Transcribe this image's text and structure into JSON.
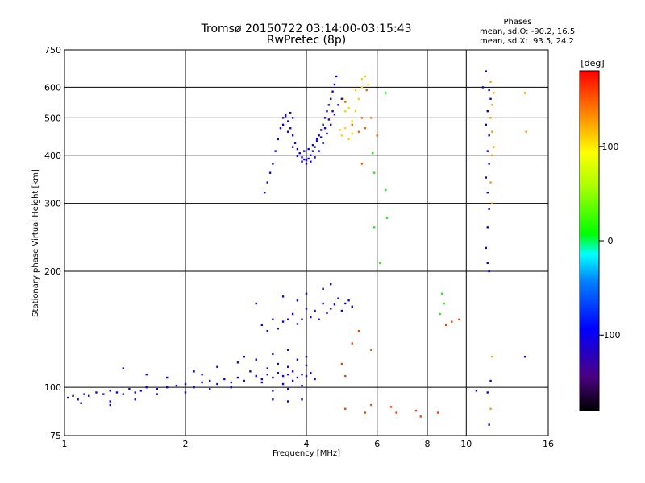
{
  "chart_data": {
    "type": "scatter",
    "title": "Tromsø 20150722 03:14:00-03:15:43",
    "subtitle": "RwPretec (8p)",
    "xlabel": "Frequency [MHz]",
    "ylabel": "Stationary phase Virtual Height [km]",
    "x_scale": "log",
    "y_scale": "log",
    "xlim": [
      1,
      16
    ],
    "ylim": [
      75,
      750
    ],
    "x_ticks": [
      1,
      2,
      4,
      6,
      8,
      10,
      16
    ],
    "y_ticks": [
      75,
      100,
      200,
      300,
      400,
      500,
      600,
      750
    ],
    "grid": true,
    "stats": {
      "header": "Phases",
      "line_o": "mean, sd,O: -90.2, 16.5",
      "line_x": "mean, sd,X:  93.5, 24.2"
    },
    "colorbar": {
      "label": "[deg]",
      "range": [
        -180,
        180
      ],
      "ticks": [
        100,
        0,
        -100
      ],
      "colors": [
        "#000000",
        "#5000a0",
        "#0000ff",
        "#0080ff",
        "#00ffff",
        "#00ff00",
        "#ffff00",
        "#ff8000",
        "#ff0000"
      ]
    },
    "series": [
      {
        "values": [
          [
            1.02,
            94
          ],
          [
            1.05,
            95
          ],
          [
            1.08,
            93
          ],
          [
            1.12,
            96
          ],
          [
            1.15,
            95
          ],
          [
            1.2,
            97
          ],
          [
            1.25,
            96
          ],
          [
            1.3,
            98
          ],
          [
            1.35,
            97
          ],
          [
            1.4,
            96
          ],
          [
            1.45,
            99
          ],
          [
            1.5,
            97
          ],
          [
            1.55,
            98
          ],
          [
            1.6,
            100
          ],
          [
            1.7,
            99
          ],
          [
            1.8,
            100
          ],
          [
            1.9,
            101
          ],
          [
            2.0,
            102
          ],
          [
            2.1,
            100
          ],
          [
            2.2,
            103
          ],
          [
            2.3,
            104
          ],
          [
            2.4,
            102
          ],
          [
            2.5,
            105
          ],
          [
            2.6,
            103
          ],
          [
            2.7,
            106
          ],
          [
            2.8,
            104
          ],
          [
            3.0,
            107
          ],
          [
            3.1,
            105
          ],
          [
            3.2,
            108
          ],
          [
            3.3,
            106
          ],
          [
            3.4,
            109
          ],
          [
            3.5,
            107
          ],
          [
            3.6,
            108
          ],
          [
            3.7,
            110
          ],
          [
            3.8,
            106
          ],
          [
            3.9,
            108
          ],
          [
            4.0,
            107
          ],
          [
            4.1,
            109
          ],
          [
            4.2,
            105
          ],
          [
            1.1,
            91
          ],
          [
            1.3,
            92
          ],
          [
            1.5,
            93
          ],
          [
            1.7,
            96
          ],
          [
            2.0,
            97
          ],
          [
            2.3,
            99
          ],
          [
            2.6,
            100
          ],
          [
            1.4,
            112
          ],
          [
            1.6,
            108
          ],
          [
            1.8,
            106
          ],
          [
            2.1,
            110
          ],
          [
            2.4,
            113
          ],
          [
            2.7,
            116
          ],
          [
            3.0,
            118
          ],
          [
            3.2,
            112
          ],
          [
            3.4,
            115
          ],
          [
            3.6,
            113
          ],
          [
            3.8,
            118
          ],
          [
            4.0,
            114
          ],
          [
            3.3,
            98
          ],
          [
            3.6,
            99
          ],
          [
            3.9,
            101
          ],
          [
            3.3,
            93
          ],
          [
            3.6,
            92
          ],
          [
            3.9,
            93
          ],
          [
            1.3,
            90
          ],
          [
            2.8,
            120
          ],
          [
            3.3,
            122
          ],
          [
            3.6,
            125
          ],
          [
            4.0,
            120
          ],
          [
            2.2,
            108
          ],
          [
            2.9,
            110
          ],
          [
            3.1,
            103
          ],
          [
            3.5,
            102
          ],
          [
            3.7,
            104
          ]
        ],
        "phase": -110
      },
      {
        "values": [
          [
            3.1,
            145
          ],
          [
            3.3,
            150
          ],
          [
            3.5,
            148
          ],
          [
            3.7,
            155
          ],
          [
            3.9,
            150
          ],
          [
            4.0,
            160
          ],
          [
            4.2,
            158
          ],
          [
            4.4,
            165
          ],
          [
            4.6,
            160
          ],
          [
            4.8,
            170
          ],
          [
            5.0,
            165
          ],
          [
            5.2,
            162
          ],
          [
            3.0,
            165
          ],
          [
            3.2,
            140
          ],
          [
            3.4,
            142
          ],
          [
            3.6,
            150
          ],
          [
            3.8,
            146
          ],
          [
            4.1,
            152
          ],
          [
            4.3,
            150
          ],
          [
            4.5,
            156
          ],
          [
            4.7,
            164
          ],
          [
            4.9,
            158
          ],
          [
            5.1,
            168
          ],
          [
            4.0,
            175
          ],
          [
            4.4,
            180
          ],
          [
            4.6,
            185
          ],
          [
            3.5,
            172
          ],
          [
            3.8,
            168
          ]
        ],
        "phase": -110
      },
      {
        "values": [
          [
            3.15,
            320
          ],
          [
            3.2,
            340
          ],
          [
            3.25,
            360
          ],
          [
            3.3,
            380
          ],
          [
            3.35,
            410
          ],
          [
            3.4,
            440
          ],
          [
            3.45,
            470
          ],
          [
            3.5,
            500
          ],
          [
            3.55,
            510
          ],
          [
            3.6,
            490
          ],
          [
            3.65,
            470
          ],
          [
            3.7,
            450
          ],
          [
            3.75,
            430
          ],
          [
            3.8,
            415
          ],
          [
            3.85,
            405
          ],
          [
            3.9,
            395
          ],
          [
            3.95,
            390
          ],
          [
            4.0,
            388
          ],
          [
            4.05,
            392
          ],
          [
            4.1,
            400
          ],
          [
            4.15,
            410
          ],
          [
            4.2,
            420
          ],
          [
            4.25,
            435
          ],
          [
            4.3,
            450
          ],
          [
            4.35,
            465
          ],
          [
            4.4,
            480
          ],
          [
            4.45,
            500
          ],
          [
            4.5,
            520
          ],
          [
            4.55,
            540
          ],
          [
            4.6,
            560
          ],
          [
            4.65,
            585
          ],
          [
            4.7,
            610
          ],
          [
            4.75,
            640
          ],
          [
            3.6,
            460
          ],
          [
            3.7,
            420
          ],
          [
            3.8,
            398
          ],
          [
            3.9,
            385
          ],
          [
            4.0,
            380
          ],
          [
            4.1,
            385
          ],
          [
            4.2,
            395
          ],
          [
            4.3,
            410
          ],
          [
            4.4,
            430
          ],
          [
            4.5,
            455
          ],
          [
            4.6,
            480
          ],
          [
            4.7,
            510
          ],
          [
            3.5,
            480
          ],
          [
            3.55,
            505
          ],
          [
            3.65,
            515
          ],
          [
            3.7,
            500
          ],
          [
            4.8,
            540
          ],
          [
            4.9,
            560
          ],
          [
            3.95,
            410
          ],
          [
            4.05,
            415
          ],
          [
            4.15,
            425
          ],
          [
            4.25,
            440
          ],
          [
            4.35,
            445
          ],
          [
            4.45,
            470
          ],
          [
            4.55,
            495
          ],
          [
            4.65,
            520
          ]
        ],
        "phase": -105
      },
      {
        "values": [
          [
            4.9,
            450
          ],
          [
            5.0,
            470
          ],
          [
            5.1,
            440
          ],
          [
            5.2,
            490
          ],
          [
            5.3,
            520
          ],
          [
            5.4,
            560
          ],
          [
            5.5,
            600
          ],
          [
            5.6,
            640
          ],
          [
            5.0,
            520
          ],
          [
            5.1,
            530
          ],
          [
            4.95,
            560
          ],
          [
            5.3,
            590
          ],
          [
            5.5,
            630
          ],
          [
            5.7,
            610
          ],
          [
            5.2,
            455
          ],
          [
            4.85,
            465
          ]
        ],
        "phase": 110
      },
      {
        "values": [
          [
            5.5,
            500
          ],
          [
            5.2,
            480
          ],
          [
            5.6,
            470
          ],
          [
            5.0,
            550
          ],
          [
            5.4,
            460
          ],
          [
            5.65,
            590
          ],
          [
            5.8,
            500
          ],
          [
            6.0,
            450
          ],
          [
            5.5,
            380
          ]
        ],
        "phase": 150
      },
      {
        "values": [
          [
            5.85,
            405
          ],
          [
            5.9,
            360
          ],
          [
            6.3,
            580
          ],
          [
            6.3,
            325
          ],
          [
            6.35,
            275
          ],
          [
            5.9,
            260
          ],
          [
            6.1,
            210
          ],
          [
            8.7,
            175
          ],
          [
            8.8,
            165
          ],
          [
            8.6,
            155
          ]
        ],
        "phase": 10
      },
      {
        "values": [
          [
            11.2,
            660
          ],
          [
            11.0,
            600
          ],
          [
            11.4,
            590
          ],
          [
            11.5,
            560
          ],
          [
            11.3,
            520
          ],
          [
            11.2,
            480
          ],
          [
            11.4,
            450
          ],
          [
            11.3,
            410
          ],
          [
            11.4,
            380
          ],
          [
            11.2,
            350
          ],
          [
            11.3,
            320
          ],
          [
            11.4,
            290
          ],
          [
            11.3,
            260
          ],
          [
            11.2,
            230
          ],
          [
            11.3,
            210
          ],
          [
            11.4,
            200
          ],
          [
            14.0,
            120
          ],
          [
            11.4,
            80
          ],
          [
            11.3,
            97
          ],
          [
            10.6,
            98
          ],
          [
            11.5,
            104
          ]
        ],
        "phase": -100
      },
      {
        "values": [
          [
            11.5,
            620
          ],
          [
            11.7,
            580
          ],
          [
            11.6,
            540
          ],
          [
            11.5,
            500
          ],
          [
            11.6,
            460
          ],
          [
            11.7,
            420
          ],
          [
            11.6,
            400
          ],
          [
            11.5,
            340
          ],
          [
            11.6,
            300
          ],
          [
            14.0,
            580
          ],
          [
            14.1,
            460
          ],
          [
            11.6,
            120
          ],
          [
            11.5,
            88
          ]
        ],
        "phase": 130
      },
      {
        "values": [
          [
            5.0,
            88
          ],
          [
            5.6,
            86
          ],
          [
            5.8,
            90
          ],
          [
            6.5,
            89
          ],
          [
            6.7,
            86
          ],
          [
            7.5,
            87
          ],
          [
            7.7,
            84
          ],
          [
            8.5,
            86
          ],
          [
            5.2,
            130
          ],
          [
            5.4,
            140
          ],
          [
            5.8,
            125
          ],
          [
            4.9,
            115
          ],
          [
            5.0,
            107
          ],
          [
            8.9,
            145
          ],
          [
            9.2,
            148
          ],
          [
            9.6,
            150
          ]
        ],
        "phase": 160
      }
    ]
  }
}
